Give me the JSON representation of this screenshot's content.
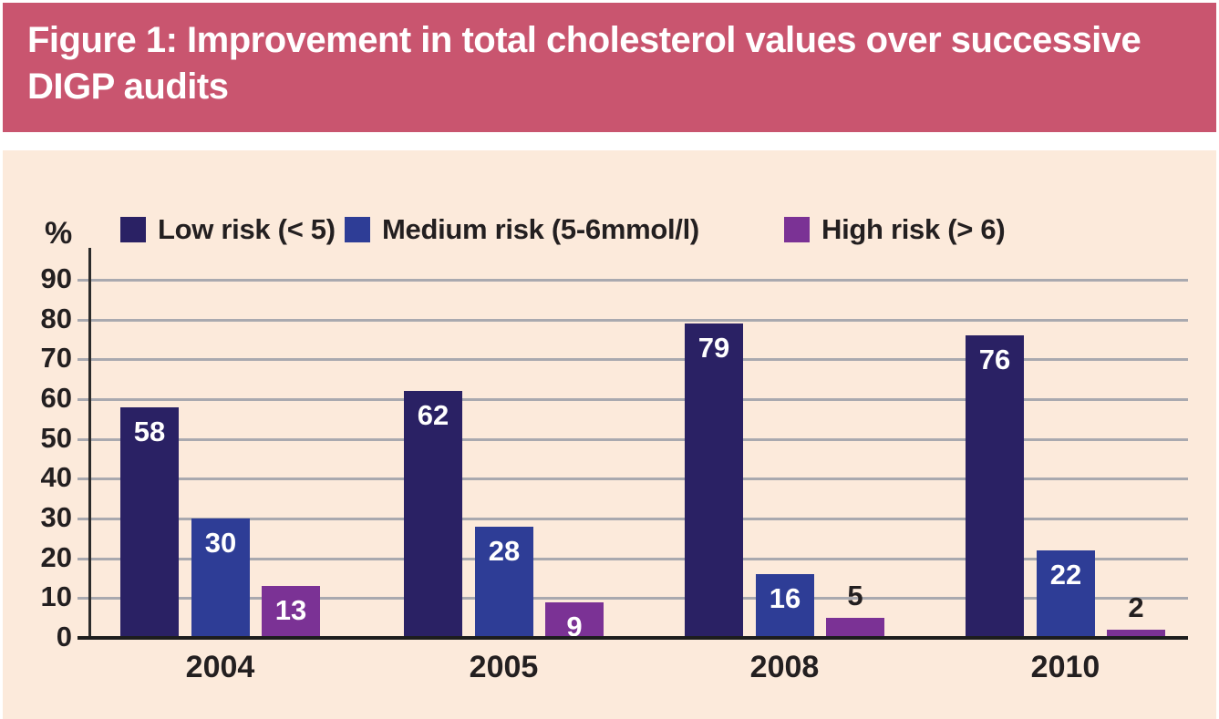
{
  "header": {
    "title": "Figure 1: Improvement in total cholesterol values over successive DIGP audits"
  },
  "chart_data": {
    "type": "bar",
    "title": "Figure 1: Improvement in total cholesterol values over successive DIGP audits",
    "categories": [
      "2004",
      "2005",
      "2008",
      "2010"
    ],
    "series": [
      {
        "name": "Low risk (< 5)",
        "color": "#2A2164",
        "values": [
          58,
          62,
          79,
          76
        ]
      },
      {
        "name": "Medium risk (5-6mmol/l)",
        "color": "#2E3D96",
        "values": [
          30,
          28,
          16,
          22
        ]
      },
      {
        "name": "High risk (> 6)",
        "color": "#7B3295",
        "values": [
          13,
          9,
          5,
          2
        ]
      }
    ],
    "ylabel": "%",
    "ylim": [
      0,
      90
    ],
    "ytick_step": 10,
    "grid": true,
    "legend_position": "top",
    "value_labels": true
  },
  "colors": {
    "banner_background": "#C9556F",
    "banner_text": "#FFFFFF",
    "panel_background": "#FCEADB",
    "gridline": "#A9A9AF",
    "axis": "#231F20",
    "text": "#231F20",
    "bar_label_inside": "#FFFFFF",
    "bar_label_outside": "#231F20"
  }
}
